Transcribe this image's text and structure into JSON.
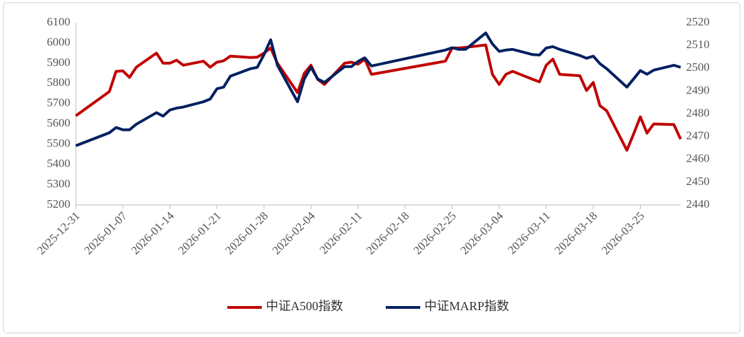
{
  "chart_data": {
    "type": "line",
    "x": [
      "2025-12-31",
      "2026-01-05",
      "2026-01-06",
      "2026-01-07",
      "2026-01-08",
      "2026-01-09",
      "2026-01-12",
      "2026-01-13",
      "2026-01-14",
      "2026-01-15",
      "2026-01-16",
      "2026-01-19",
      "2026-01-20",
      "2026-01-21",
      "2026-01-22",
      "2026-01-23",
      "2026-01-26",
      "2026-01-27",
      "2026-01-28",
      "2026-01-29",
      "2026-01-30",
      "2026-02-02",
      "2026-02-03",
      "2026-02-04",
      "2026-02-05",
      "2026-02-06",
      "2026-02-09",
      "2026-02-10",
      "2026-02-11",
      "2026-02-12",
      "2026-02-13",
      "2026-02-24",
      "2026-02-25",
      "2026-02-26",
      "2026-02-27",
      "2026-03-02",
      "2026-03-03",
      "2026-03-04",
      "2026-03-05",
      "2026-03-06",
      "2026-03-09",
      "2026-03-10",
      "2026-03-11",
      "2026-03-12",
      "2026-03-13",
      "2026-03-16",
      "2026-03-17",
      "2026-03-18",
      "2026-03-19",
      "2026-03-20",
      "2026-03-23",
      "2026-03-24",
      "2026-03-25",
      "2026-03-26",
      "2026-03-27",
      "2026-03-30",
      "2026-03-31"
    ],
    "series": [
      {
        "name": "中证A500指数",
        "color": "#c00000",
        "axis": "y",
        "values": [
          5640,
          5760,
          5860,
          5862,
          5830,
          5880,
          5950,
          5900,
          5900,
          5915,
          5890,
          5910,
          5880,
          5905,
          5912,
          5935,
          5928,
          5930,
          5950,
          5975,
          5900,
          5755,
          5850,
          5890,
          5820,
          5795,
          5900,
          5905,
          5895,
          5920,
          5845,
          5910,
          5975,
          5975,
          5978,
          5990,
          5845,
          5795,
          5845,
          5860,
          5820,
          5808,
          5890,
          5920,
          5845,
          5838,
          5765,
          5805,
          5690,
          5665,
          5470,
          5550,
          5635,
          5555,
          5600,
          5597,
          5525
        ]
      },
      {
        "name": "中证MARP指数",
        "color": "#002060",
        "axis": "y2",
        "values": [
          2466,
          2471.7,
          2474,
          2473,
          2473,
          2475.4,
          2480.5,
          2479,
          2481.7,
          2482.5,
          2483,
          2485.3,
          2486.5,
          2491,
          2491.7,
          2496.5,
          2499.8,
          2500.4,
          2506,
          2512.5,
          2501.3,
          2485.3,
          2495.3,
          2500.4,
          2495.3,
          2493.8,
          2500.7,
          2500.7,
          2503,
          2504.6,
          2501,
          2508,
          2509,
          2508.3,
          2508.3,
          2515.5,
          2510.7,
          2507.4,
          2508,
          2508.3,
          2506,
          2505.8,
          2508.9,
          2509.5,
          2508.3,
          2505.6,
          2504.4,
          2505.3,
          2502,
          2499.8,
          2491.7,
          2495.3,
          2499,
          2497.4,
          2499.2,
          2501.3,
          2500.4
        ]
      }
    ],
    "xlim": [
      "2025-12-31",
      "2026-03-31"
    ],
    "xticks": [
      "2025-12-31",
      "2026-01-07",
      "2026-01-14",
      "2026-01-21",
      "2026-01-28",
      "2026-02-04",
      "2026-02-11",
      "2026-02-18",
      "2026-02-25",
      "2026-03-04",
      "2026-03-11",
      "2026-03-18",
      "2026-03-25"
    ],
    "ylim": [
      5200,
      6100
    ],
    "yticks": [
      5200,
      5300,
      5400,
      5500,
      5600,
      5700,
      5800,
      5900,
      6000,
      6100
    ],
    "y2lim": [
      2440,
      2520
    ],
    "y2ticks": [
      2440,
      2450,
      2460,
      2470,
      2480,
      2490,
      2500,
      2510,
      2520
    ],
    "grid": false,
    "legend": "bottom"
  }
}
